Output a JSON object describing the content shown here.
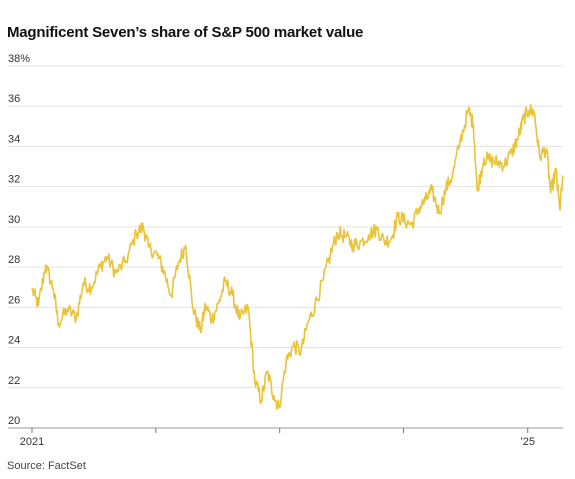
{
  "title": "Magnificent Seven’s share of S&P 500 market value",
  "source": "Source: FactSet",
  "colors": {
    "line": "#e9c43a",
    "grid": "#e3e3e3",
    "text": "#333333"
  },
  "chart_data": {
    "type": "line",
    "title": "Magnificent Seven’s share of S&P 500 market value",
    "xlabel": "",
    "ylabel": "",
    "ylim": [
      20,
      38
    ],
    "yticks": [
      20,
      22,
      24,
      26,
      28,
      30,
      32,
      34,
      36,
      38
    ],
    "ytick_labels": [
      "20",
      "22",
      "24",
      "26",
      "28",
      "30",
      "32",
      "34",
      "36",
      "38%"
    ],
    "x_axis_type": "date",
    "xlim": [
      "2021-01-01",
      "2025-04-15"
    ],
    "xticks": [
      "2021-01-01",
      "2022-01-01",
      "2023-01-01",
      "2024-01-01",
      "2025-01-01"
    ],
    "xtick_labels": [
      "2021",
      "",
      "",
      "",
      "’25"
    ],
    "grid": true,
    "series": [
      {
        "name": "",
        "x": [
          "2021-01-01",
          "2021-01-20",
          "2021-02-10",
          "2021-03-05",
          "2021-03-20",
          "2021-04-15",
          "2021-05-12",
          "2021-06-01",
          "2021-06-25",
          "2021-07-20",
          "2021-08-10",
          "2021-09-05",
          "2021-10-05",
          "2021-11-05",
          "2021-11-25",
          "2021-12-10",
          "2022-01-05",
          "2022-01-25",
          "2022-02-15",
          "2022-03-08",
          "2022-03-30",
          "2022-04-20",
          "2022-05-12",
          "2022-05-28",
          "2022-06-15",
          "2022-07-05",
          "2022-07-25",
          "2022-08-15",
          "2022-09-05",
          "2022-09-30",
          "2022-10-20",
          "2022-11-08",
          "2022-11-25",
          "2022-12-15",
          "2022-12-30",
          "2023-01-20",
          "2023-02-10",
          "2023-03-05",
          "2023-03-25",
          "2023-04-15",
          "2023-05-10",
          "2023-05-30",
          "2023-06-20",
          "2023-07-15",
          "2023-08-05",
          "2023-08-25",
          "2023-09-20",
          "2023-10-15",
          "2023-11-05",
          "2023-11-25",
          "2023-12-15",
          "2024-01-05",
          "2024-01-25",
          "2024-02-15",
          "2024-03-05",
          "2024-03-25",
          "2024-04-15",
          "2024-05-05",
          "2024-05-25",
          "2024-06-15",
          "2024-07-10",
          "2024-07-25",
          "2024-08-05",
          "2024-08-25",
          "2024-09-15",
          "2024-10-05",
          "2024-10-25",
          "2024-11-15",
          "2024-12-05",
          "2024-12-20",
          "2025-01-05",
          "2025-01-20",
          "2025-02-05",
          "2025-02-25",
          "2025-03-10",
          "2025-03-25",
          "2025-04-05",
          "2025-04-15"
        ],
        "y": [
          26.9,
          26.1,
          28.1,
          26.9,
          25.2,
          25.9,
          25.5,
          27.2,
          27.0,
          28.0,
          28.5,
          27.7,
          28.3,
          29.7,
          30.0,
          29.0,
          28.6,
          27.8,
          26.6,
          28.2,
          29.1,
          26.0,
          24.8,
          26.1,
          25.4,
          26.2,
          27.3,
          26.6,
          25.4,
          26.0,
          22.3,
          21.4,
          22.8,
          21.6,
          21.0,
          23.3,
          24.1,
          23.8,
          25.2,
          26.1,
          27.4,
          28.6,
          29.7,
          29.5,
          29.1,
          29.2,
          29.6,
          29.9,
          29.3,
          29.4,
          30.5,
          30.3,
          30.1,
          30.9,
          31.3,
          31.8,
          30.7,
          31.9,
          32.6,
          34.2,
          35.8,
          35.1,
          31.8,
          33.4,
          33.3,
          33.2,
          33.1,
          33.7,
          34.5,
          35.4,
          35.8,
          35.7,
          33.5,
          33.9,
          31.7,
          32.8,
          30.9,
          32.4
        ]
      }
    ]
  }
}
